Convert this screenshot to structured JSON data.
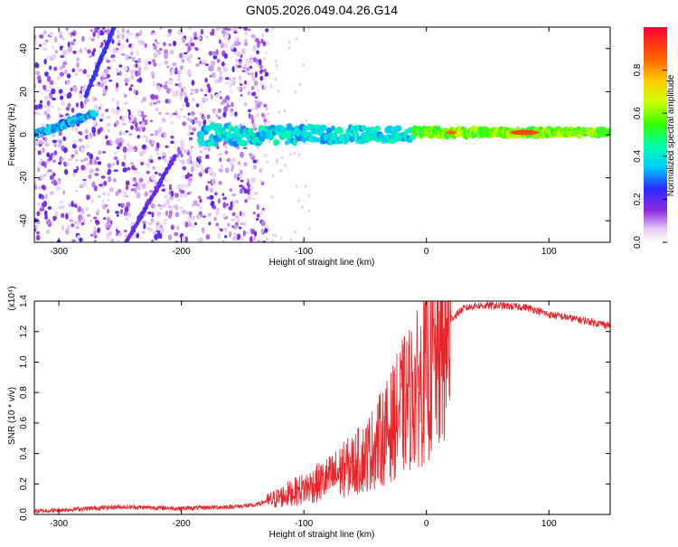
{
  "title": "GN05.2026.049.04.26.G14",
  "colors": {
    "snr_line": "#e8242a",
    "axis": "#000000",
    "background": "#ffffff"
  },
  "chart_data": [
    {
      "type": "heatmap",
      "name": "spectrogram",
      "xlabel": "Height of straight line (km)",
      "ylabel": "Frequency (Hz)",
      "xlim": [
        -320,
        150
      ],
      "ylim": [
        -50,
        50
      ],
      "xticks": [
        -300,
        -200,
        -100,
        0,
        100
      ],
      "yticks": [
        -40,
        -20,
        0,
        20,
        40
      ],
      "xtick_labels": [
        "-300",
        "-200",
        "-100",
        "0",
        "100"
      ],
      "ytick_labels": [
        "-40",
        "-20",
        "0",
        "20",
        "40"
      ],
      "colorbar": {
        "label": "Normalized spectral amplitude",
        "range": [
          0,
          1
        ],
        "ticks": [
          0.0,
          0.2,
          0.4,
          0.6,
          0.8
        ],
        "tick_labels": [
          "0.0",
          "0.2",
          "0.4",
          "0.6",
          "0.8"
        ]
      },
      "features": [
        {
          "kind": "noise",
          "x_range": [
            -320,
            -130
          ],
          "amplitude": 0.2
        },
        {
          "kind": "band",
          "x_range": [
            -320,
            -270
          ],
          "freq_start": 0,
          "freq_end": 10,
          "amplitude": 0.3
        },
        {
          "kind": "diagonal",
          "x_start": -245,
          "y_start": -50,
          "x_end": -205,
          "y_end": -10,
          "amplitude": 0.15
        },
        {
          "kind": "diagonal",
          "x_start": -278,
          "y_start": 18,
          "x_end": -255,
          "y_end": 50,
          "amplitude": 0.2
        },
        {
          "kind": "band",
          "x_range": [
            -185,
            -10
          ],
          "freq_center": 0,
          "width_hz": 9,
          "amplitude": 0.35
        },
        {
          "kind": "band",
          "x_range": [
            -10,
            150
          ],
          "freq_center": 1,
          "width_hz": 3,
          "amplitude": 0.55
        },
        {
          "kind": "peak",
          "x": 80,
          "freq": 1,
          "amplitude": 0.9
        }
      ]
    },
    {
      "type": "line",
      "name": "snr",
      "xlabel": "Height of straight line (km)",
      "ylabel": "SNR (10 * v/v)",
      "multiplier_label": "(x10⁴)",
      "xlim": [
        -320,
        150
      ],
      "ylim": [
        0,
        1.4
      ],
      "xticks": [
        -300,
        -200,
        -100,
        0,
        100
      ],
      "yticks": [
        0.0,
        0.2,
        0.4,
        0.6,
        0.8,
        1.0,
        1.2,
        1.4
      ],
      "xtick_labels": [
        "-300",
        "-200",
        "-100",
        "0",
        "100"
      ],
      "ytick_labels": [
        "0.0",
        "0.2",
        "0.4",
        "0.6",
        "0.8",
        "1.0",
        "1.2",
        "1.4"
      ],
      "series": [
        {
          "name": "SNR",
          "x": [
            -320,
            -250,
            -200,
            -160,
            -140,
            -120,
            -100,
            -80,
            -60,
            -50,
            -40,
            -30,
            -20,
            -10,
            0,
            10,
            20,
            30,
            40,
            50,
            60,
            80,
            90,
            100,
            110,
            130,
            150
          ],
          "y": [
            0.02,
            0.05,
            0.04,
            0.05,
            0.06,
            0.12,
            0.18,
            0.25,
            0.35,
            0.4,
            0.5,
            0.6,
            0.75,
            0.85,
            0.95,
            1.1,
            1.28,
            1.35,
            1.37,
            1.37,
            1.37,
            1.36,
            1.34,
            1.31,
            1.3,
            1.27,
            1.24
          ]
        }
      ]
    }
  ]
}
